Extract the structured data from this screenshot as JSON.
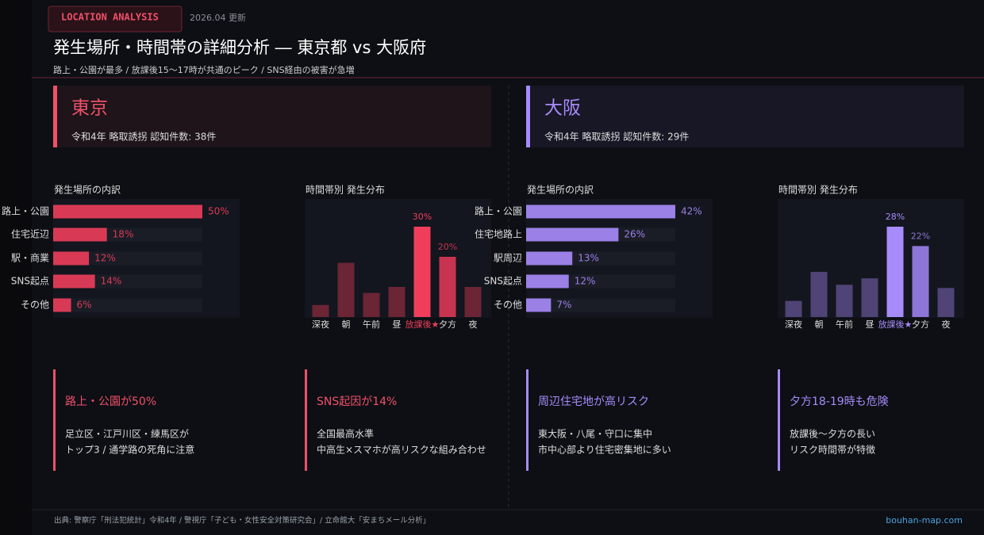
{
  "header": {
    "badge": "LOCATION ANALYSIS",
    "updated": "2026.04 更新",
    "title": "発生場所・時間帯の詳細分析 ― 東京都 vs 大阪府",
    "subtitle": "路上・公園が最多 / 放課後15〜17時が共通のピーク / SNS経由の被害が急増"
  },
  "panels": [
    {
      "name": "東京",
      "stat": "令和4年 略取誘拐 認知件数: 38件",
      "color": "#f0506a"
    },
    {
      "name": "大阪",
      "stat": "令和4年 略取誘拐 認知件数: 29件",
      "color": "#a78bfa"
    }
  ],
  "chart_data": [
    {
      "type": "hbar",
      "title": "発生場所の内訳",
      "categories": [
        "路上・公園",
        "住宅近辺",
        "駅・商業",
        "SNS起点",
        "その他"
      ],
      "values": [
        50,
        18,
        12,
        14,
        6
      ],
      "value_labels": [
        "50%",
        "18%",
        "12%",
        "14%",
        "6%"
      ],
      "color": "#d83a56",
      "xlim": [
        0,
        50
      ]
    },
    {
      "type": "bar",
      "title": "時間帯別 発生分布",
      "categories": [
        "深夜",
        "朝",
        "午前",
        "昼",
        "放課後★",
        "夕方",
        "夜"
      ],
      "values": [
        4,
        18,
        8,
        10,
        30,
        20,
        10
      ],
      "value_labels": [
        null,
        null,
        null,
        null,
        "30%",
        "20%",
        null
      ],
      "colors": [
        "#6b2535",
        "#6b2535",
        "#6b2535",
        "#6b2535",
        "#f03e5a",
        "#c8344f",
        "#6b2535"
      ],
      "category_colors": [
        "#dddddd",
        "#dddddd",
        "#dddddd",
        "#dddddd",
        "#f03e5a",
        "#dddddd",
        "#dddddd"
      ],
      "ylim": [
        0,
        30
      ]
    },
    {
      "type": "hbar",
      "title": "発生場所の内訳",
      "categories": [
        "路上・公園",
        "住宅地路上",
        "駅周辺",
        "SNS起点",
        "その他"
      ],
      "values": [
        42,
        26,
        13,
        12,
        7
      ],
      "value_labels": [
        "42%",
        "26%",
        "13%",
        "12%",
        "7%"
      ],
      "color": "#9b80e6",
      "xlim": [
        0,
        42
      ]
    },
    {
      "type": "bar",
      "title": "時間帯別 発生分布",
      "categories": [
        "深夜",
        "朝",
        "午前",
        "昼",
        "放課後★",
        "夕方",
        "夜"
      ],
      "values": [
        5,
        14,
        10,
        12,
        28,
        22,
        9
      ],
      "value_labels": [
        null,
        null,
        null,
        null,
        "28%",
        "22%",
        null
      ],
      "colors": [
        "#4f4475",
        "#4f4475",
        "#4f4475",
        "#4f4475",
        "#a78bfa",
        "#8e76d8",
        "#4f4475"
      ],
      "category_colors": [
        "#dddddd",
        "#dddddd",
        "#dddddd",
        "#dddddd",
        "#a78bfa",
        "#dddddd",
        "#dddddd"
      ],
      "ylim": [
        0,
        28
      ]
    }
  ],
  "cards": [
    {
      "title": "路上・公園が50%",
      "lines": [
        "足立区・江戸川区・練馬区が",
        "トップ3 / 通学路の死角に注意"
      ],
      "color": "#f0506a"
    },
    {
      "title": "SNS起因が14%",
      "lines": [
        "全国最高水準",
        "中高生×スマホが高リスクな組み合わせ"
      ],
      "color": "#f0506a"
    },
    {
      "title": "周辺住宅地が高リスク",
      "lines": [
        "東大阪・八尾・守口に集中",
        "市中心部より住宅密集地に多い"
      ],
      "color": "#a78bfa"
    },
    {
      "title": "夕方18-19時も危険",
      "lines": [
        "放課後〜夕方の長い",
        "リスク時間帯が特徴"
      ],
      "color": "#a78bfa"
    }
  ],
  "footer": {
    "source": "出典: 警察庁「刑法犯統計」令和4年 / 警視庁「子ども・女性安全対策研究会」/ 立命館大「安まちメール分析」",
    "site": "bouhan-map.com"
  }
}
